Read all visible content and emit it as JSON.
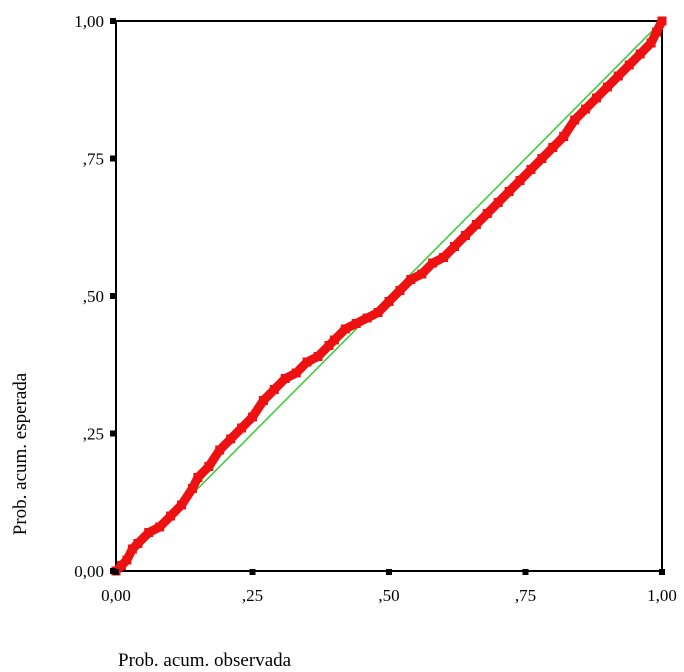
{
  "chart_data": {
    "type": "scatter",
    "title": "",
    "xlabel": "Prob. acum. observada",
    "ylabel": "Prob. acum. esperada",
    "xlim": [
      0,
      1
    ],
    "ylim": [
      0,
      1
    ],
    "grid": false,
    "legend": "none",
    "x_ticks": [
      0,
      0.25,
      0.5,
      0.75,
      1
    ],
    "y_ticks": [
      0,
      0.25,
      0.5,
      0.75,
      1
    ],
    "x_tick_labels": [
      "0,00",
      ",25",
      ",50",
      ",75",
      "1,00"
    ],
    "y_tick_labels": [
      "0,00",
      ",25",
      ",50",
      ",75",
      "1,00"
    ],
    "reference_line": {
      "from": [
        0,
        0
      ],
      "to": [
        1,
        1
      ],
      "color": "#33cc33"
    },
    "point_color": "#ee1111",
    "series": [
      {
        "x": [
          0.0,
          0.01,
          0.02,
          0.03,
          0.04,
          0.06,
          0.08,
          0.1,
          0.12,
          0.14,
          0.15,
          0.17,
          0.19,
          0.21,
          0.23,
          0.25,
          0.27,
          0.29,
          0.31,
          0.33,
          0.35,
          0.37,
          0.39,
          0.4,
          0.42,
          0.44,
          0.46,
          0.48,
          0.5,
          0.52,
          0.54,
          0.56,
          0.58,
          0.6,
          0.62,
          0.64,
          0.66,
          0.68,
          0.7,
          0.72,
          0.74,
          0.76,
          0.78,
          0.8,
          0.82,
          0.84,
          0.86,
          0.88,
          0.9,
          0.92,
          0.94,
          0.96,
          0.98,
          0.99,
          1.0
        ],
        "y": [
          0.0,
          0.01,
          0.02,
          0.04,
          0.05,
          0.07,
          0.08,
          0.1,
          0.12,
          0.15,
          0.17,
          0.19,
          0.22,
          0.24,
          0.26,
          0.28,
          0.31,
          0.33,
          0.35,
          0.36,
          0.38,
          0.39,
          0.41,
          0.42,
          0.44,
          0.45,
          0.46,
          0.47,
          0.49,
          0.51,
          0.53,
          0.54,
          0.56,
          0.57,
          0.59,
          0.61,
          0.63,
          0.65,
          0.67,
          0.69,
          0.71,
          0.73,
          0.75,
          0.77,
          0.79,
          0.82,
          0.84,
          0.86,
          0.88,
          0.9,
          0.92,
          0.94,
          0.96,
          0.98,
          1.0
        ]
      }
    ]
  }
}
